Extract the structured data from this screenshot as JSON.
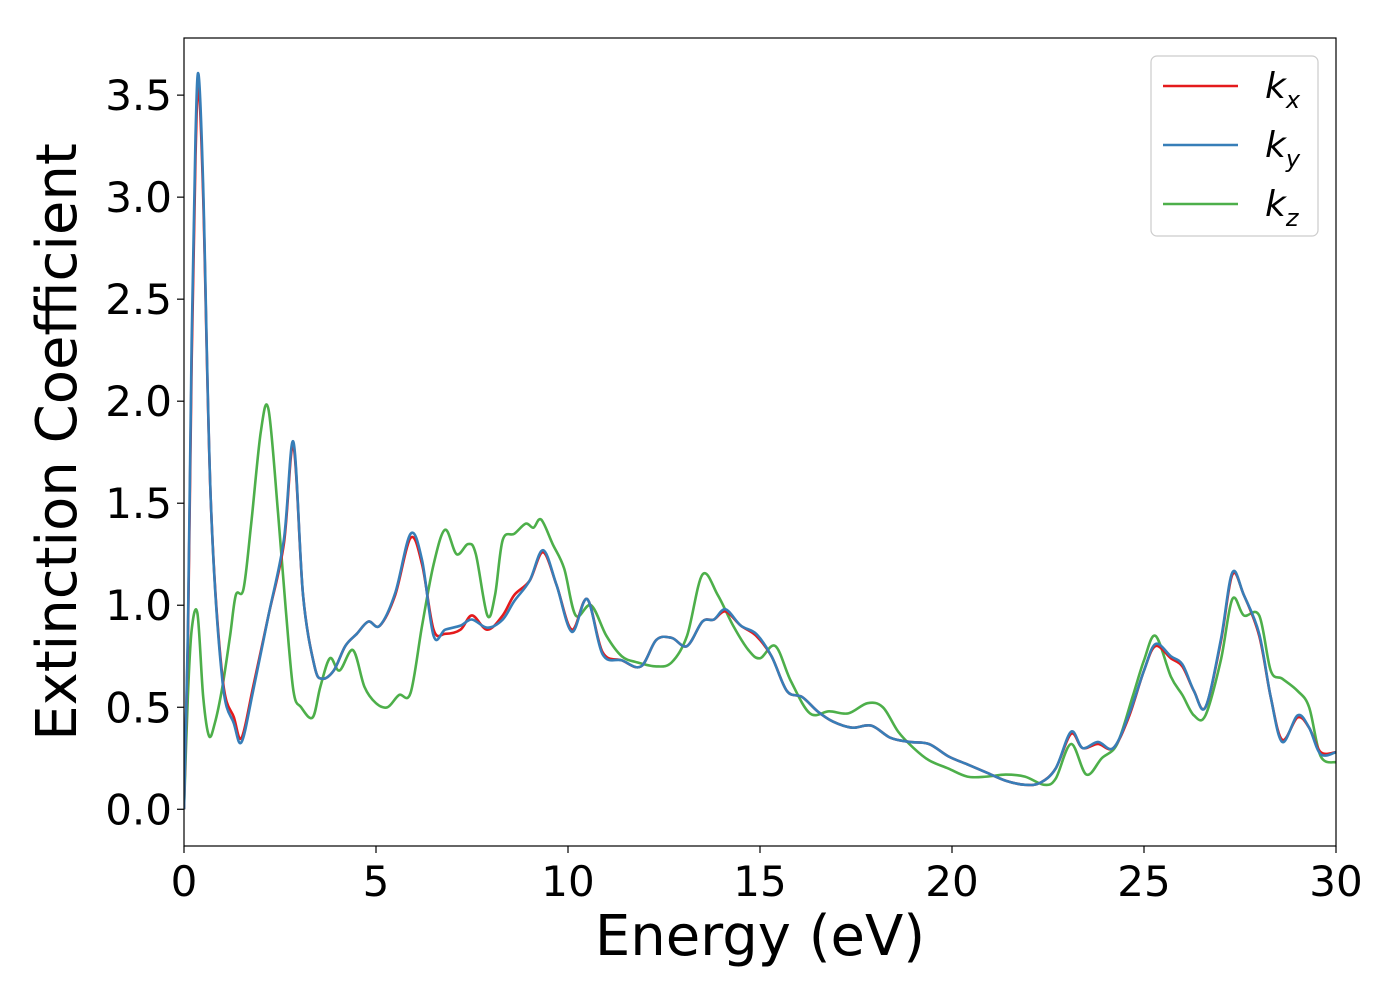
{
  "chart_data": {
    "type": "line",
    "xlabel": "Energy (eV)",
    "ylabel": "Extinction Coefficient",
    "xlim": [
      0,
      30
    ],
    "ylim": [
      -0.18,
      3.78
    ],
    "xticks": [
      "0",
      "5",
      "10",
      "15",
      "20",
      "25",
      "30"
    ],
    "yticks": [
      "0.0",
      "0.5",
      "1.0",
      "1.5",
      "2.0",
      "2.5",
      "3.0",
      "3.5"
    ],
    "grid": false,
    "legend_position": "top-right",
    "series": [
      {
        "name": "k",
        "subscript": "x",
        "color": "#e41a1c",
        "x": [
          0,
          0.1,
          0.2,
          0.3,
          0.38,
          0.5,
          0.7,
          1.0,
          1.3,
          1.5,
          1.8,
          2.2,
          2.6,
          2.85,
          3.1,
          3.4,
          3.6,
          3.9,
          4.2,
          4.5,
          4.8,
          5.1,
          5.5,
          5.9,
          6.2,
          6.5,
          6.8,
          7.2,
          7.5,
          7.9,
          8.3,
          8.6,
          9.0,
          9.35,
          9.7,
          10.1,
          10.5,
          10.9,
          11.4,
          11.9,
          12.3,
          12.7,
          13.1,
          13.5,
          13.8,
          14.1,
          14.5,
          14.9,
          15.3,
          15.7,
          16.1,
          16.5,
          16.9,
          17.4,
          17.9,
          18.4,
          18.9,
          19.4,
          19.9,
          20.4,
          20.9,
          21.4,
          21.9,
          22.3,
          22.7,
          23.1,
          23.4,
          23.8,
          24.2,
          24.6,
          25.0,
          25.3,
          25.7,
          26.0,
          26.3,
          26.6,
          27.0,
          27.3,
          27.6,
          28.0,
          28.3,
          28.6,
          29.0,
          29.3,
          29.6,
          30.0
        ],
        "y": [
          0.0,
          0.8,
          2.2,
          3.2,
          3.54,
          3.0,
          1.5,
          0.65,
          0.45,
          0.35,
          0.6,
          0.95,
          1.3,
          1.78,
          1.05,
          0.7,
          0.64,
          0.68,
          0.8,
          0.86,
          0.92,
          0.9,
          1.05,
          1.33,
          1.2,
          0.88,
          0.86,
          0.88,
          0.95,
          0.88,
          0.95,
          1.05,
          1.12,
          1.26,
          1.1,
          0.88,
          1.03,
          0.77,
          0.73,
          0.7,
          0.83,
          0.84,
          0.8,
          0.92,
          0.93,
          0.97,
          0.9,
          0.85,
          0.75,
          0.58,
          0.55,
          0.48,
          0.43,
          0.4,
          0.41,
          0.35,
          0.33,
          0.32,
          0.26,
          0.22,
          0.18,
          0.14,
          0.12,
          0.13,
          0.2,
          0.37,
          0.3,
          0.32,
          0.3,
          0.45,
          0.68,
          0.8,
          0.74,
          0.7,
          0.58,
          0.5,
          0.82,
          1.15,
          1.05,
          0.85,
          0.55,
          0.34,
          0.45,
          0.4,
          0.28,
          0.28
        ]
      },
      {
        "name": "k",
        "subscript": "y",
        "color": "#377eb8",
        "x": [
          0,
          0.1,
          0.2,
          0.3,
          0.38,
          0.5,
          0.7,
          1.0,
          1.3,
          1.5,
          1.8,
          2.2,
          2.6,
          2.85,
          3.1,
          3.4,
          3.6,
          3.9,
          4.2,
          4.5,
          4.8,
          5.1,
          5.5,
          5.9,
          6.2,
          6.5,
          6.8,
          7.2,
          7.5,
          7.9,
          8.3,
          8.6,
          9.0,
          9.35,
          9.7,
          10.1,
          10.5,
          10.9,
          11.4,
          11.9,
          12.3,
          12.7,
          13.1,
          13.5,
          13.8,
          14.1,
          14.5,
          14.9,
          15.3,
          15.7,
          16.1,
          16.5,
          16.9,
          17.4,
          17.9,
          18.4,
          18.9,
          19.4,
          19.9,
          20.4,
          20.9,
          21.4,
          21.9,
          22.3,
          22.7,
          23.1,
          23.4,
          23.8,
          24.2,
          24.6,
          25.0,
          25.3,
          25.7,
          26.0,
          26.3,
          26.6,
          27.0,
          27.3,
          27.6,
          28.0,
          28.3,
          28.6,
          29.0,
          29.3,
          29.6,
          30.0
        ],
        "y": [
          0.0,
          0.85,
          2.3,
          3.3,
          3.6,
          3.05,
          1.5,
          0.63,
          0.42,
          0.33,
          0.58,
          0.95,
          1.32,
          1.8,
          1.05,
          0.7,
          0.64,
          0.68,
          0.8,
          0.86,
          0.92,
          0.9,
          1.06,
          1.35,
          1.22,
          0.85,
          0.88,
          0.9,
          0.93,
          0.89,
          0.93,
          1.02,
          1.12,
          1.27,
          1.1,
          0.87,
          1.03,
          0.76,
          0.73,
          0.7,
          0.83,
          0.84,
          0.8,
          0.92,
          0.93,
          0.98,
          0.9,
          0.86,
          0.75,
          0.58,
          0.55,
          0.48,
          0.43,
          0.4,
          0.41,
          0.35,
          0.33,
          0.32,
          0.26,
          0.22,
          0.18,
          0.14,
          0.12,
          0.13,
          0.2,
          0.38,
          0.3,
          0.33,
          0.3,
          0.46,
          0.68,
          0.81,
          0.75,
          0.71,
          0.58,
          0.5,
          0.83,
          1.16,
          1.05,
          0.86,
          0.55,
          0.33,
          0.46,
          0.4,
          0.27,
          0.28
        ]
      },
      {
        "name": "k",
        "subscript": "z",
        "color": "#4daf4a",
        "x": [
          0,
          0.1,
          0.2,
          0.35,
          0.5,
          0.65,
          0.8,
          1.0,
          1.2,
          1.35,
          1.55,
          1.75,
          2.0,
          2.2,
          2.45,
          2.65,
          2.85,
          3.05,
          3.35,
          3.55,
          3.8,
          4.05,
          4.4,
          4.7,
          5.0,
          5.3,
          5.6,
          5.9,
          6.2,
          6.5,
          6.8,
          7.1,
          7.4,
          7.6,
          7.9,
          8.1,
          8.3,
          8.6,
          8.9,
          9.1,
          9.3,
          9.6,
          9.9,
          10.2,
          10.6,
          11.0,
          11.4,
          11.8,
          12.3,
          12.7,
          13.1,
          13.5,
          13.9,
          14.3,
          14.7,
          15.0,
          15.4,
          15.8,
          16.3,
          16.8,
          17.3,
          17.8,
          18.2,
          18.6,
          19.0,
          19.4,
          19.9,
          20.4,
          20.9,
          21.4,
          21.9,
          22.4,
          22.7,
          23.1,
          23.5,
          23.9,
          24.3,
          24.7,
          25.0,
          25.3,
          25.7,
          26.0,
          26.3,
          26.6,
          27.0,
          27.3,
          27.6,
          28.0,
          28.3,
          28.6,
          29.0,
          29.3,
          29.6,
          30.0
        ],
        "y": [
          0.0,
          0.55,
          0.88,
          0.96,
          0.55,
          0.36,
          0.42,
          0.6,
          0.85,
          1.05,
          1.08,
          1.4,
          1.85,
          1.96,
          1.45,
          0.98,
          0.58,
          0.5,
          0.45,
          0.6,
          0.74,
          0.68,
          0.78,
          0.6,
          0.52,
          0.5,
          0.56,
          0.57,
          0.9,
          1.2,
          1.37,
          1.25,
          1.3,
          1.25,
          0.95,
          1.05,
          1.32,
          1.35,
          1.4,
          1.38,
          1.42,
          1.3,
          1.18,
          0.95,
          1.0,
          0.85,
          0.75,
          0.72,
          0.7,
          0.72,
          0.85,
          1.15,
          1.05,
          0.9,
          0.78,
          0.74,
          0.8,
          0.63,
          0.47,
          0.48,
          0.47,
          0.52,
          0.5,
          0.38,
          0.3,
          0.24,
          0.2,
          0.16,
          0.16,
          0.17,
          0.16,
          0.12,
          0.15,
          0.32,
          0.17,
          0.25,
          0.32,
          0.55,
          0.73,
          0.85,
          0.65,
          0.56,
          0.46,
          0.46,
          0.73,
          1.03,
          0.95,
          0.95,
          0.68,
          0.64,
          0.58,
          0.5,
          0.26,
          0.23
        ]
      }
    ]
  }
}
